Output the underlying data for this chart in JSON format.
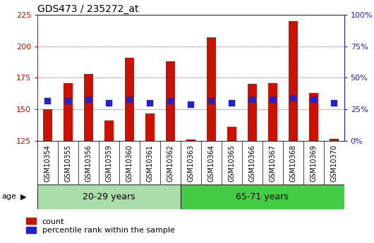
{
  "title": "GDS473 / 235272_at",
  "categories": [
    "GSM10354",
    "GSM10355",
    "GSM10356",
    "GSM10359",
    "GSM10360",
    "GSM10361",
    "GSM10362",
    "GSM10363",
    "GSM10364",
    "GSM10365",
    "GSM10366",
    "GSM10367",
    "GSM10368",
    "GSM10369",
    "GSM10370"
  ],
  "count_values": [
    150,
    171,
    178,
    141,
    191,
    147,
    188,
    126,
    207,
    136,
    170,
    171,
    220,
    163,
    127
  ],
  "percentile_values": [
    32,
    32,
    33,
    30,
    33,
    30,
    32,
    29,
    32,
    30,
    33,
    33,
    34,
    33,
    30
  ],
  "groups": [
    {
      "label": "20-29 years",
      "start": 0,
      "end": 7
    },
    {
      "label": "65-71 years",
      "start": 7,
      "end": 15
    }
  ],
  "group_colors": [
    "#aaddaa",
    "#44cc44"
  ],
  "ylim": [
    125,
    225
  ],
  "yticks": [
    125,
    150,
    175,
    200,
    225
  ],
  "y2lim": [
    0,
    100
  ],
  "y2ticks": [
    0,
    25,
    50,
    75,
    100
  ],
  "bar_color": "#CC1100",
  "dot_color": "#2222CC",
  "ylabel_color": "#CC1100",
  "y2label_color": "#2222CC",
  "background_color": "#FFFFFF",
  "plot_bg_color": "#FFFFFF",
  "legend_count_label": "count",
  "legend_pct_label": "percentile rank within the sample",
  "bar_width": 0.45,
  "dot_size": 28,
  "title_fontsize": 10,
  "tick_label_fontsize": 7,
  "ytick_fontsize": 8,
  "age_label": "age"
}
